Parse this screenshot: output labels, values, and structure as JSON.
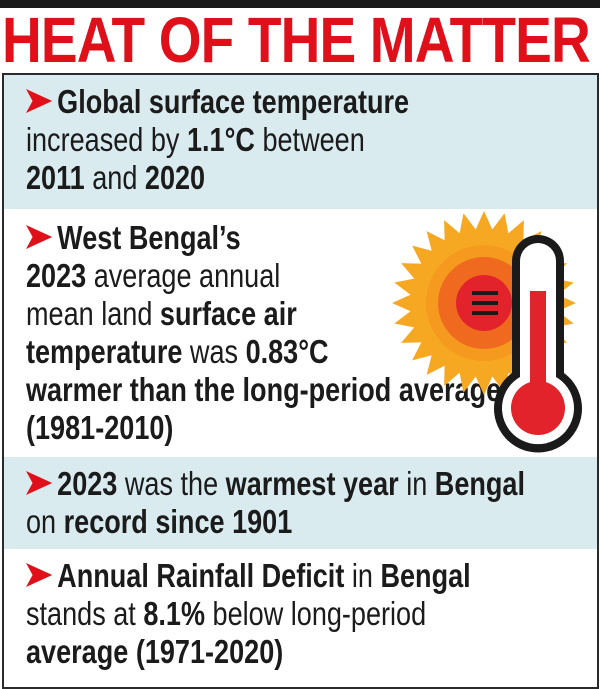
{
  "header": {
    "title": "HEAT OF THE MATTER"
  },
  "colors": {
    "title_red": "#e0101a",
    "arrow_red": "#e0101a",
    "panel_blue": "#d9ebef",
    "text": "#1b1b1b",
    "sun_outer": "#f7a823",
    "sun_mid": "#f27d1c",
    "sun_inner": "#e84524",
    "sun_core": "#e3232b",
    "thermometer_fill": "#e3232b"
  },
  "icon": {
    "name": "sun-thermometer-icon"
  },
  "facts": [
    {
      "lines": [
        [
          {
            "t": "Global surface temperature",
            "b": true
          }
        ],
        [
          {
            "t": "increased by ",
            "b": false
          },
          {
            "t": "1.1°C",
            "b": true
          },
          {
            "t": " between",
            "b": false
          }
        ],
        [
          {
            "t": "2011",
            "b": true
          },
          {
            "t": " and ",
            "b": false
          },
          {
            "t": "2020",
            "b": true
          }
        ]
      ]
    },
    {
      "lines": [
        [
          {
            "t": "West Bengal’s",
            "b": true
          }
        ],
        [
          {
            "t": "2023",
            "b": true
          },
          {
            "t": " average annual",
            "b": false
          }
        ],
        [
          {
            "t": "mean land ",
            "b": false
          },
          {
            "t": "surface air",
            "b": true
          }
        ],
        [
          {
            "t": "temperature",
            "b": true
          },
          {
            "t": " was ",
            "b": false
          },
          {
            "t": "0.83°C",
            "b": true
          }
        ],
        [
          {
            "t": "warmer than the long-period average",
            "b": true
          }
        ],
        [
          {
            "t": "(1981-2010)",
            "b": true
          }
        ]
      ]
    },
    {
      "lines": [
        [
          {
            "t": "2023",
            "b": true
          },
          {
            "t": " was the ",
            "b": false
          },
          {
            "t": "warmest year",
            "b": true
          },
          {
            "t": " in ",
            "b": false
          },
          {
            "t": "Bengal",
            "b": true
          }
        ],
        [
          {
            "t": "on ",
            "b": false
          },
          {
            "t": "record since 1901",
            "b": true
          }
        ]
      ]
    },
    {
      "lines": [
        [
          {
            "t": "Annual Rainfall Deficit",
            "b": true
          },
          {
            "t": " in ",
            "b": false
          },
          {
            "t": "Bengal",
            "b": true
          }
        ],
        [
          {
            "t": "stands at ",
            "b": false
          },
          {
            "t": "8.1%",
            "b": true
          },
          {
            "t": " below long-period",
            "b": false
          }
        ],
        [
          {
            "t": "average (1971-2020)",
            "b": true
          }
        ]
      ]
    }
  ]
}
